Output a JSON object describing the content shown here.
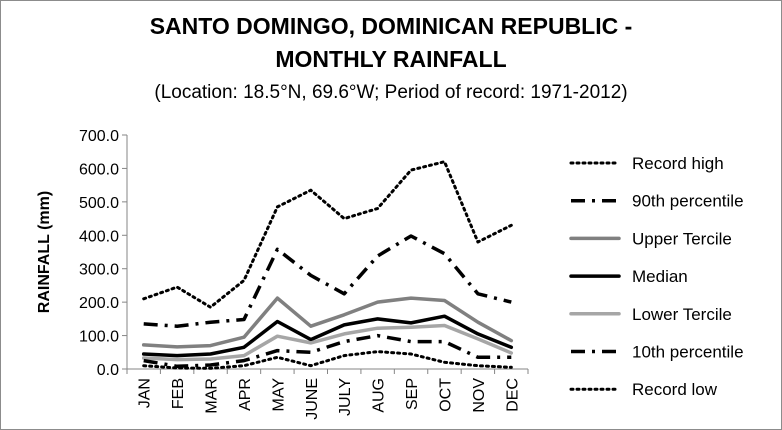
{
  "chart_data": {
    "type": "line",
    "title_line1": "SANTO DOMINGO, DOMINICAN REPUBLIC -",
    "title_line2": "MONTHLY RAINFALL",
    "subtitle": "(Location: 18.5°N, 69.6°W; Period of record: 1971-2012)",
    "xlabel": "",
    "ylabel": "RAINFALL (mm)",
    "ylim": [
      0,
      700
    ],
    "yticks": [
      "0.0",
      "100.0",
      "200.0",
      "300.0",
      "400.0",
      "500.0",
      "600.0",
      "700.0"
    ],
    "grid": false,
    "legend_position": "right",
    "categories": [
      "JAN",
      "FEB",
      "MAR",
      "APR",
      "MAY",
      "JUNE",
      "JULY",
      "AUG",
      "SEP",
      "OCT",
      "NOV",
      "DEC"
    ],
    "series": [
      {
        "name": "Record high",
        "color": "#000000",
        "style": "dotted",
        "values": [
          210,
          245,
          185,
          265,
          485,
          535,
          450,
          480,
          595,
          620,
          380,
          430
        ]
      },
      {
        "name": "90th percentile",
        "color": "#000000",
        "style": "dashdot",
        "values": [
          135,
          128,
          140,
          148,
          358,
          280,
          225,
          338,
          398,
          345,
          225,
          200
        ]
      },
      {
        "name": "Upper Tercile",
        "color": "#808080",
        "style": "solid",
        "values": [
          72,
          66,
          70,
          95,
          212,
          128,
          162,
          200,
          212,
          205,
          140,
          85
        ]
      },
      {
        "name": "Median",
        "color": "#000000",
        "style": "solid",
        "values": [
          45,
          40,
          45,
          65,
          142,
          88,
          132,
          150,
          138,
          158,
          105,
          65
        ]
      },
      {
        "name": "Lower Tercile",
        "color": "#a6a6a6",
        "style": "solid",
        "values": [
          33,
          28,
          30,
          40,
          98,
          78,
          105,
          122,
          125,
          130,
          90,
          48
        ]
      },
      {
        "name": "10th percentile",
        "color": "#000000",
        "style": "dashdot",
        "values": [
          25,
          8,
          12,
          25,
          55,
          50,
          82,
          100,
          82,
          82,
          35,
          35
        ]
      },
      {
        "name": "Record low",
        "color": "#000000",
        "style": "dotted",
        "values": [
          10,
          3,
          2,
          10,
          35,
          10,
          40,
          52,
          45,
          20,
          10,
          5
        ]
      }
    ]
  }
}
